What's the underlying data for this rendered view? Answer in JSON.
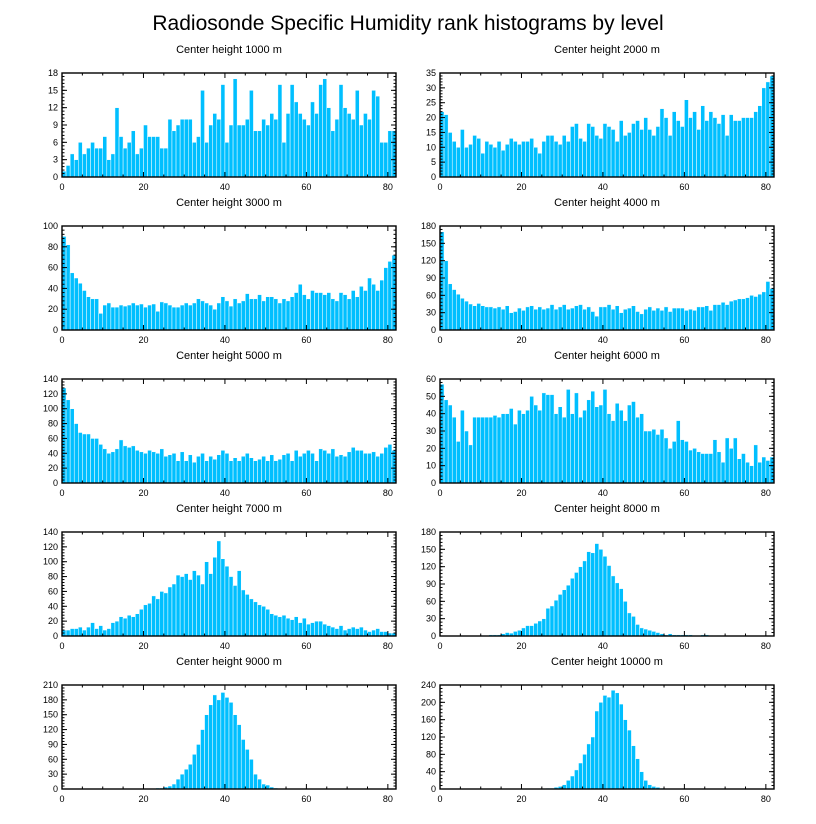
{
  "figure": {
    "title": "Radiosonde Specific Humidity rank histograms by level",
    "bar_color": "#00BFFF"
  },
  "chart_data": [
    {
      "type": "bar",
      "title": "Center height 1000 m",
      "xlim": [
        0,
        82
      ],
      "ylim": [
        0,
        18
      ],
      "xticks": [
        0,
        20,
        40,
        60,
        80
      ],
      "yticks": [
        0,
        3,
        6,
        9,
        12,
        15,
        18
      ],
      "values": [
        1,
        2,
        4,
        3,
        6,
        4,
        5,
        6,
        5,
        5,
        7,
        3,
        4,
        12,
        7,
        5,
        6,
        8,
        4,
        5,
        9,
        7,
        7,
        7,
        5,
        5,
        10,
        8,
        9,
        10,
        10,
        10,
        6,
        7,
        15,
        6,
        9,
        11,
        10,
        16,
        6,
        9,
        17,
        9,
        9,
        10,
        15,
        8,
        8,
        10,
        9,
        11,
        10,
        16,
        6,
        11,
        16,
        13,
        11,
        10,
        9,
        13,
        11,
        16,
        17,
        12,
        8,
        10,
        16,
        12,
        11,
        10,
        15,
        9,
        11,
        10,
        15,
        14,
        6,
        6,
        8,
        8
      ]
    },
    {
      "type": "bar",
      "title": "Center height 2000 m",
      "xlim": [
        0,
        82
      ],
      "ylim": [
        0,
        35
      ],
      "xticks": [
        0,
        20,
        40,
        60,
        80
      ],
      "yticks": [
        0,
        5,
        10,
        15,
        20,
        25,
        30,
        35
      ],
      "values": [
        22,
        21,
        15,
        12,
        10,
        16,
        10,
        11,
        14,
        13,
        8,
        12,
        11,
        10,
        12,
        9,
        11,
        13,
        12,
        11,
        12,
        12,
        13,
        10,
        8,
        12,
        14,
        14,
        12,
        11,
        14,
        12,
        17,
        18,
        13,
        12,
        18,
        17,
        14,
        13,
        18,
        17,
        16,
        12,
        19,
        14,
        15,
        18,
        19,
        16,
        20,
        16,
        14,
        17,
        23,
        20,
        14,
        22,
        19,
        17,
        26,
        20,
        22,
        16,
        24,
        19,
        22,
        20,
        18,
        21,
        14,
        21,
        19,
        19,
        20,
        20,
        20,
        22,
        24,
        30,
        32,
        34
      ]
    },
    {
      "type": "bar",
      "title": "Center height 3000 m",
      "xlim": [
        0,
        82
      ],
      "ylim": [
        0,
        100
      ],
      "xticks": [
        0,
        20,
        40,
        60,
        80
      ],
      "yticks": [
        0,
        20,
        40,
        60,
        80,
        100
      ],
      "values": [
        90,
        82,
        55,
        50,
        45,
        38,
        32,
        30,
        30,
        16,
        24,
        26,
        22,
        22,
        24,
        23,
        24,
        26,
        24,
        25,
        22,
        24,
        25,
        18,
        27,
        26,
        24,
        22,
        22,
        24,
        26,
        24,
        26,
        30,
        28,
        26,
        24,
        20,
        26,
        32,
        28,
        23,
        30,
        26,
        28,
        35,
        30,
        30,
        34,
        28,
        32,
        32,
        30,
        26,
        30,
        28,
        32,
        36,
        44,
        34,
        30,
        38,
        36,
        36,
        34,
        36,
        30,
        28,
        36,
        34,
        30,
        38,
        32,
        42,
        38,
        50,
        44,
        38,
        48,
        60,
        66,
        72
      ]
    },
    {
      "type": "bar",
      "title": "Center height 4000 m",
      "xlim": [
        0,
        82
      ],
      "ylim": [
        0,
        180
      ],
      "xticks": [
        0,
        20,
        40,
        60,
        80
      ],
      "yticks": [
        0,
        30,
        60,
        90,
        120,
        150,
        180
      ],
      "values": [
        170,
        120,
        80,
        70,
        62,
        55,
        50,
        45,
        42,
        46,
        42,
        40,
        40,
        38,
        40,
        36,
        42,
        30,
        32,
        38,
        34,
        40,
        42,
        36,
        40,
        36,
        38,
        44,
        36,
        40,
        44,
        36,
        38,
        42,
        44,
        36,
        40,
        32,
        24,
        40,
        40,
        44,
        36,
        42,
        30,
        36,
        38,
        42,
        32,
        28,
        36,
        40,
        34,
        38,
        34,
        40,
        32,
        38,
        38,
        38,
        34,
        36,
        34,
        40,
        40,
        42,
        34,
        44,
        44,
        48,
        44,
        50,
        52,
        54,
        54,
        56,
        60,
        58,
        62,
        66,
        84,
        72
      ]
    },
    {
      "type": "bar",
      "title": "Center height 5000 m",
      "xlim": [
        0,
        82
      ],
      "ylim": [
        0,
        140
      ],
      "xticks": [
        0,
        20,
        40,
        60,
        80
      ],
      "yticks": [
        0,
        20,
        40,
        60,
        80,
        100,
        120,
        140
      ],
      "values": [
        128,
        112,
        100,
        80,
        68,
        66,
        66,
        60,
        60,
        52,
        46,
        40,
        42,
        46,
        58,
        50,
        48,
        50,
        44,
        42,
        40,
        44,
        42,
        40,
        46,
        36,
        38,
        40,
        30,
        42,
        30,
        38,
        28,
        36,
        40,
        30,
        36,
        32,
        38,
        44,
        40,
        30,
        34,
        30,
        36,
        40,
        34,
        30,
        32,
        36,
        30,
        38,
        30,
        32,
        38,
        40,
        30,
        44,
        36,
        40,
        44,
        40,
        30,
        46,
        44,
        40,
        46,
        36,
        38,
        36,
        42,
        48,
        44,
        44,
        40,
        40,
        42,
        36,
        40,
        48,
        52,
        44
      ]
    },
    {
      "type": "bar",
      "title": "Center height 6000 m",
      "xlim": [
        0,
        82
      ],
      "ylim": [
        0,
        60
      ],
      "xticks": [
        0,
        20,
        40,
        60,
        80
      ],
      "yticks": [
        0,
        10,
        20,
        30,
        40,
        50,
        60
      ],
      "values": [
        57,
        48,
        45,
        38,
        24,
        42,
        30,
        22,
        38,
        38,
        38,
        38,
        38,
        39,
        38,
        40,
        40,
        43,
        34,
        42,
        40,
        42,
        50,
        45,
        42,
        52,
        51,
        51,
        40,
        44,
        38,
        54,
        40,
        52,
        38,
        42,
        48,
        53,
        44,
        45,
        54,
        40,
        36,
        46,
        42,
        36,
        45,
        47,
        38,
        40,
        30,
        30,
        31,
        28,
        31,
        26,
        20,
        24,
        36,
        25,
        24,
        19,
        20,
        18,
        17,
        17,
        17,
        25,
        18,
        12,
        26,
        20,
        26,
        14,
        17,
        12,
        10,
        22,
        12,
        15,
        13,
        15
      ]
    },
    {
      "type": "bar",
      "title": "Center height 7000 m",
      "xlim": [
        0,
        82
      ],
      "ylim": [
        0,
        140
      ],
      "xticks": [
        0,
        20,
        40,
        60,
        80
      ],
      "yticks": [
        0,
        20,
        40,
        60,
        80,
        100,
        120,
        140
      ],
      "values": [
        8,
        8,
        10,
        10,
        12,
        8,
        12,
        18,
        10,
        14,
        8,
        10,
        18,
        20,
        26,
        24,
        28,
        26,
        30,
        36,
        42,
        44,
        54,
        50,
        60,
        58,
        66,
        70,
        82,
        80,
        84,
        76,
        88,
        82,
        70,
        100,
        84,
        106,
        128,
        104,
        94,
        80,
        68,
        88,
        62,
        56,
        50,
        46,
        42,
        40,
        36,
        30,
        28,
        26,
        28,
        24,
        22,
        26,
        18,
        24,
        16,
        18,
        20,
        20,
        16,
        14,
        12,
        10,
        14,
        8,
        10,
        12,
        10,
        12,
        8,
        6,
        8,
        10,
        6,
        6,
        4,
        4
      ]
    },
    {
      "type": "bar",
      "title": "Center height 8000 m",
      "xlim": [
        0,
        82
      ],
      "ylim": [
        0,
        180
      ],
      "xticks": [
        0,
        20,
        40,
        60,
        80
      ],
      "yticks": [
        0,
        30,
        60,
        90,
        120,
        150,
        180
      ],
      "values": [
        0,
        0,
        0,
        0,
        0,
        0,
        0,
        0,
        0,
        0,
        1,
        0,
        2,
        2,
        2,
        4,
        6,
        5,
        8,
        10,
        14,
        18,
        18,
        22,
        26,
        30,
        48,
        52,
        62,
        72,
        80,
        88,
        100,
        110,
        120,
        130,
        146,
        144,
        160,
        150,
        138,
        122,
        104,
        92,
        82,
        60,
        40,
        34,
        20,
        14,
        12,
        10,
        8,
        6,
        4,
        2,
        4,
        2,
        2,
        2,
        2,
        2,
        1,
        1,
        2,
        2,
        1,
        0,
        1,
        0,
        0,
        0,
        0,
        0,
        0,
        0,
        0,
        0,
        0,
        0,
        0,
        0
      ]
    },
    {
      "type": "bar",
      "title": "Center height 9000 m",
      "xlim": [
        0,
        82
      ],
      "ylim": [
        0,
        210
      ],
      "xticks": [
        0,
        20,
        40,
        60,
        80
      ],
      "yticks": [
        0,
        30,
        60,
        90,
        120,
        150,
        180,
        210
      ],
      "values": [
        0,
        0,
        0,
        0,
        0,
        0,
        0,
        0,
        0,
        0,
        0,
        0,
        0,
        0,
        0,
        0,
        0,
        0,
        0,
        0,
        0,
        0,
        1,
        2,
        2,
        4,
        6,
        10,
        20,
        30,
        40,
        50,
        70,
        90,
        120,
        150,
        170,
        190,
        180,
        195,
        185,
        175,
        150,
        130,
        100,
        80,
        60,
        30,
        20,
        10,
        8,
        4,
        2,
        1,
        0,
        0,
        0,
        0,
        0,
        0,
        0,
        0,
        0,
        0,
        0,
        0,
        0,
        0,
        0,
        0,
        0,
        0,
        0,
        0,
        0,
        0,
        0,
        0,
        0,
        0,
        0,
        0
      ]
    },
    {
      "type": "bar",
      "title": "Center height 10000 m",
      "xlim": [
        0,
        82
      ],
      "ylim": [
        0,
        240
      ],
      "xticks": [
        0,
        20,
        40,
        60,
        80
      ],
      "yticks": [
        0,
        40,
        80,
        120,
        160,
        200,
        240
      ],
      "values": [
        0,
        0,
        0,
        0,
        0,
        0,
        0,
        0,
        0,
        0,
        0,
        0,
        0,
        0,
        0,
        0,
        0,
        0,
        0,
        0,
        0,
        0,
        0,
        0,
        0,
        0,
        2,
        2,
        4,
        6,
        10,
        20,
        30,
        44,
        60,
        80,
        104,
        120,
        180,
        200,
        216,
        212,
        228,
        222,
        196,
        160,
        136,
        100,
        70,
        40,
        20,
        10,
        6,
        4,
        2,
        1,
        0,
        0,
        0,
        0,
        0,
        0,
        0,
        0,
        0,
        0,
        0,
        0,
        0,
        0,
        0,
        0,
        0,
        0,
        0,
        0,
        0,
        0,
        0,
        0,
        0,
        0
      ]
    }
  ]
}
